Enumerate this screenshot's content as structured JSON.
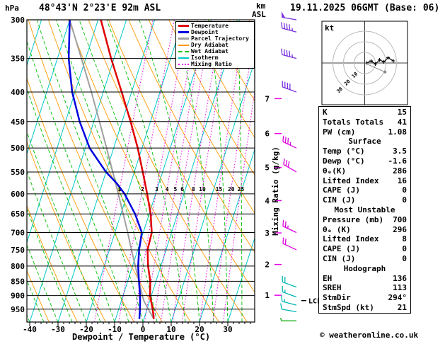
{
  "header": {
    "pressure_unit": "hPa",
    "station": "48°43'N 2°23'E 92m ASL",
    "run": "19.11.2025 06GMT (Base: 06)",
    "alt_unit": [
      "km",
      "ASL"
    ]
  },
  "footer": {
    "copyright": "© weatheronline.co.uk"
  },
  "colors": {
    "temperature": "#e00000",
    "dewpoint": "#0000e0",
    "parcel": "#a0a0a0",
    "dry_adiabat": "#ff9900",
    "wet_adiabat": "#00c000",
    "isotherm": "#00c8c8",
    "mixing_ratio": "#e800e8",
    "barb_low": "#00b4b4",
    "barb_mid": "#dc00dc",
    "barb_high": "#7830e0",
    "barb_surface": "#00aa00"
  },
  "legend": {
    "items": [
      {
        "label": "Temperature",
        "color_key": "temperature",
        "style": "solid",
        "thick": true
      },
      {
        "label": "Dewpoint",
        "color_key": "dewpoint",
        "style": "solid",
        "thick": true
      },
      {
        "label": "Parcel Trajectory",
        "color_key": "parcel",
        "style": "solid",
        "thick": true
      },
      {
        "label": "Dry Adiabat",
        "color_key": "dry_adiabat",
        "style": "solid",
        "thick": false
      },
      {
        "label": "Wet Adiabat",
        "color_key": "wet_adiabat",
        "style": "dashed",
        "thick": false
      },
      {
        "label": "Isotherm",
        "color_key": "isotherm",
        "style": "solid",
        "thick": false
      },
      {
        "label": "Mixing Ratio",
        "color_key": "mixing_ratio",
        "style": "dotted",
        "thick": false
      }
    ]
  },
  "axes": {
    "xlabel": "Dewpoint / Temperature (°C)",
    "right_label": "Mixing Ratio (g/kg)",
    "pressure_ticks": [
      300,
      350,
      400,
      450,
      500,
      550,
      600,
      650,
      700,
      750,
      800,
      850,
      900,
      950
    ],
    "temp_ticks": [
      -40,
      -30,
      -20,
      -10,
      0,
      10,
      20,
      30
    ],
    "km_ticks": [
      1,
      2,
      3,
      4,
      5,
      6,
      7
    ],
    "lcl": "LCL"
  },
  "chart_data": {
    "type": "line",
    "subtype": "skew-t_log-p_sounding",
    "title": "48°43'N 2°23'E 92m ASL  19.11.2025 06GMT (Base: 06)",
    "x_axis": {
      "label": "Dewpoint / Temperature (°C)",
      "range_at_surface": [
        -40,
        38
      ],
      "units": "°C"
    },
    "y_axis": {
      "label": "hPa",
      "scale": "log",
      "range": [
        1000,
        300
      ]
    },
    "series": [
      {
        "name": "Temperature",
        "key": "temperature",
        "pressure_hpa": [
          988,
          950,
          925,
          900,
          850,
          800,
          750,
          700,
          650,
          600,
          550,
          500,
          450,
          400,
          350,
          300
        ],
        "temp_c": [
          3.5,
          2.0,
          0.8,
          -0.5,
          -2.0,
          -4.5,
          -6.5,
          -7.0,
          -9.5,
          -13.0,
          -17.0,
          -21.5,
          -27.0,
          -33.5,
          -41.0,
          -49.0
        ]
      },
      {
        "name": "Dewpoint",
        "key": "dewpoint",
        "pressure_hpa": [
          988,
          950,
          925,
          900,
          850,
          800,
          750,
          700,
          650,
          600,
          575,
          550,
          500,
          450,
          400,
          350,
          300
        ],
        "temp_c": [
          -1.6,
          -2.5,
          -3.2,
          -4.0,
          -6.0,
          -8.0,
          -9.5,
          -10.5,
          -15.0,
          -21.0,
          -25.0,
          -30.0,
          -38.5,
          -45.0,
          -51.0,
          -56.0,
          -60.0
        ]
      },
      {
        "name": "Parcel Trajectory",
        "key": "parcel",
        "pressure_hpa": [
          988,
          950,
          920,
          900,
          850,
          800,
          750,
          700,
          650,
          600,
          550,
          500,
          450,
          400,
          350,
          300
        ],
        "temp_c": [
          3.5,
          0.5,
          -2.0,
          -3.2,
          -6.0,
          -9.0,
          -12.2,
          -15.5,
          -19.2,
          -23.2,
          -27.6,
          -32.5,
          -38.0,
          -44.2,
          -51.5,
          -60.0
        ]
      }
    ],
    "mixing_ratio_lines_g_kg": [
      1,
      2,
      3,
      4,
      5,
      6,
      8,
      10,
      15,
      20,
      25
    ],
    "lcl_pressure_hpa": 918,
    "wind_barbs": [
      {
        "pressure_hpa": 995,
        "dir_deg": 270,
        "speed_kt": 5,
        "color": "barb_surface"
      },
      {
        "pressure_hpa": 960,
        "dir_deg": 280,
        "speed_kt": 10,
        "color": "barb_low"
      },
      {
        "pressure_hpa": 935,
        "dir_deg": 285,
        "speed_kt": 15,
        "color": "barb_low"
      },
      {
        "pressure_hpa": 905,
        "dir_deg": 290,
        "speed_kt": 15,
        "color": "barb_low"
      },
      {
        "pressure_hpa": 870,
        "dir_deg": 290,
        "speed_kt": 20,
        "color": "barb_low"
      },
      {
        "pressure_hpa": 750,
        "dir_deg": 295,
        "speed_kt": 20,
        "color": "barb_mid"
      },
      {
        "pressure_hpa": 700,
        "dir_deg": 295,
        "speed_kt": 25,
        "color": "barb_mid"
      },
      {
        "pressure_hpa": 550,
        "dir_deg": 300,
        "speed_kt": 30,
        "color": "barb_mid"
      },
      {
        "pressure_hpa": 500,
        "dir_deg": 295,
        "speed_kt": 35,
        "color": "barb_mid"
      },
      {
        "pressure_hpa": 400,
        "dir_deg": 290,
        "speed_kt": 40,
        "color": "barb_high"
      },
      {
        "pressure_hpa": 350,
        "dir_deg": 285,
        "speed_kt": 45,
        "color": "barb_high"
      },
      {
        "pressure_hpa": 315,
        "dir_deg": 285,
        "speed_kt": 45,
        "color": "barb_high"
      },
      {
        "pressure_hpa": 300,
        "dir_deg": 280,
        "speed_kt": 50,
        "color": "barb_high"
      }
    ]
  },
  "hodograph": {
    "unit": "kt",
    "rings_kt": [
      10,
      20,
      30
    ],
    "trace_uv_kt": [
      [
        2,
        0
      ],
      [
        6,
        2
      ],
      [
        10,
        -1
      ],
      [
        14,
        3
      ],
      [
        18,
        1
      ],
      [
        22,
        5
      ],
      [
        27,
        2
      ]
    ],
    "storm_motion": {
      "dir_deg": 294,
      "speed_kt": 21
    }
  },
  "indices": {
    "sections": [
      {
        "title": null,
        "rows": [
          [
            "K",
            "15"
          ],
          [
            "Totals Totals",
            "41"
          ],
          [
            "PW (cm)",
            "1.08"
          ]
        ]
      },
      {
        "title": "Surface",
        "rows": [
          [
            "Temp (°C)",
            "3.5"
          ],
          [
            "Dewp (°C)",
            "-1.6"
          ],
          [
            "θₑ(K)",
            "286"
          ],
          [
            "Lifted Index",
            "16"
          ],
          [
            "CAPE (J)",
            "0"
          ],
          [
            "CIN (J)",
            "0"
          ]
        ]
      },
      {
        "title": "Most Unstable",
        "rows": [
          [
            "Pressure (mb)",
            "700"
          ],
          [
            "θₑ (K)",
            "296"
          ],
          [
            "Lifted Index",
            "8"
          ],
          [
            "CAPE (J)",
            "0"
          ],
          [
            "CIN (J)",
            "0"
          ]
        ]
      },
      {
        "title": "Hodograph",
        "rows": [
          [
            "EH",
            "136"
          ],
          [
            "SREH",
            "113"
          ],
          [
            "StmDir",
            "294°"
          ],
          [
            "StmSpd (kt)",
            "21"
          ]
        ]
      }
    ]
  }
}
